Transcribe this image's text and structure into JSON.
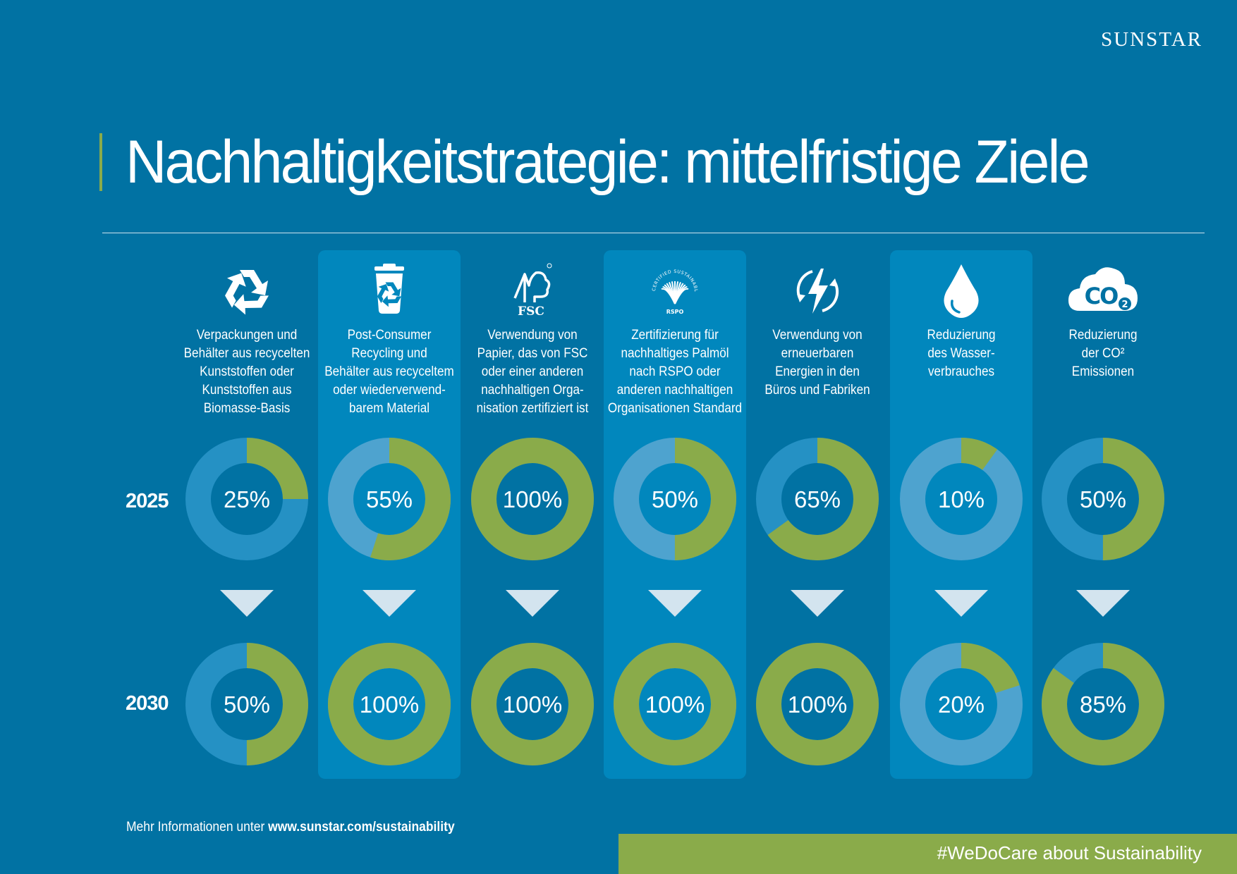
{
  "brand": "SUNSTAR",
  "title": "Nachhaltigkeitstrategie: mittelfristige Ziele",
  "years": [
    "2025",
    "2030"
  ],
  "footer": {
    "prefix": "Mehr Informationen unter",
    "url": "www.sunstar.com/sustainability"
  },
  "hashtag": "#WeDoCare about Sustainability",
  "colors": {
    "background": "#0172a3",
    "highlight_column": "#0187bd",
    "progress": "#8aab4a",
    "track": "#2591c4",
    "track_light": "#4ea3cf",
    "arrow": "#d3e4ef"
  },
  "chart_data": {
    "type": "donut",
    "title": "Nachhaltigkeitstrategie: mittelfristige Ziele",
    "categories": [
      "Verpackungen und Behälter aus recycelten Kunststoffen oder Kunststoffen aus Biomasse-Basis",
      "Post-Consumer Recycling und Behälter aus recyceltem oder wiederverwendbarem Material",
      "Verwendung von Papier, das von FSC oder einer anderen nachhaltigen Organisation zertifiziert ist",
      "Zertifizierung für nachhaltiges Palmöl nach RSPO oder anderen nachhaltigen Organisationen Standard",
      "Verwendung von erneuerbaren Energien in den Büros und Fabriken",
      "Reduzierung des Wasserverbrauches",
      "Reduzierung der CO2 Emissionen"
    ],
    "series": [
      {
        "name": "2025",
        "values": [
          25,
          55,
          100,
          50,
          65,
          10,
          50
        ]
      },
      {
        "name": "2030",
        "values": [
          50,
          100,
          100,
          100,
          100,
          20,
          85
        ]
      }
    ],
    "unit": "%",
    "ylim": [
      0,
      100
    ]
  },
  "columns": [
    {
      "icon": "recycle-icon",
      "highlight": false,
      "lines": [
        "Verpackungen und",
        "Behälter aus recycelten",
        "Kunststoffen oder",
        "Kunststoffen aus",
        "Biomasse-Basis"
      ],
      "v2025": 25,
      "v2030": 50,
      "label2025": "25%",
      "label2030": "50%",
      "track2025": "dark",
      "track2030": "dark"
    },
    {
      "icon": "recycle-bin-icon",
      "highlight": true,
      "lines": [
        "Post-Consumer",
        "Recycling und",
        "Behälter aus recyceltem",
        "oder wiederverwend-",
        "barem Material"
      ],
      "v2025": 55,
      "v2030": 100,
      "label2025": "55%",
      "label2030": "100%",
      "track2025": "light",
      "track2030": "light"
    },
    {
      "icon": "fsc-tree-icon",
      "icon_text": "FSC",
      "highlight": false,
      "lines": [
        "Verwendung von",
        "Papier, das von FSC",
        "oder einer anderen",
        "nachhaltigen Orga-",
        "nisation zertifiziert ist"
      ],
      "v2025": 100,
      "v2030": 100,
      "label2025": "100%",
      "label2030": "100%",
      "track2025": "dark",
      "track2030": "dark"
    },
    {
      "icon": "rspo-palm-icon",
      "icon_text": "RSPO",
      "icon_ring_text": "CERTIFIED SUSTAINABLE PALM OIL",
      "highlight": true,
      "lines": [
        "Zertifizierung für",
        "nachhaltiges Palmöl",
        "nach RSPO oder",
        "anderen nachhaltigen",
        "Organisationen Standard"
      ],
      "v2025": 50,
      "v2030": 100,
      "label2025": "50%",
      "label2030": "100%",
      "track2025": "light",
      "track2030": "light"
    },
    {
      "icon": "renewable-energy-icon",
      "highlight": false,
      "lines": [
        "Verwendung von",
        "erneuerbaren",
        "Energien in den",
        "Büros und Fabriken"
      ],
      "v2025": 65,
      "v2030": 100,
      "label2025": "65%",
      "label2030": "100%",
      "track2025": "dark",
      "track2030": "dark"
    },
    {
      "icon": "water-drop-icon",
      "highlight": true,
      "lines": [
        "Reduzierung",
        "des Wasser-",
        "verbrauches"
      ],
      "v2025": 10,
      "v2030": 20,
      "label2025": "10%",
      "label2030": "20%",
      "track2025": "light",
      "track2030": "light"
    },
    {
      "icon": "co2-cloud-icon",
      "icon_text": "CO",
      "icon_sub": "2",
      "highlight": false,
      "lines": [
        "Reduzierung",
        "der CO²",
        "Emissionen"
      ],
      "v2025": 50,
      "v2030": 85,
      "label2025": "50%",
      "label2030": "85%",
      "track2025": "dark",
      "track2030": "dark"
    }
  ]
}
